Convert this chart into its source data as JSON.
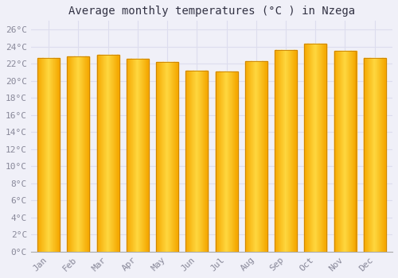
{
  "title": "Average monthly temperatures (°C ) in Nzega",
  "months": [
    "Jan",
    "Feb",
    "Mar",
    "Apr",
    "May",
    "Jun",
    "Jul",
    "Aug",
    "Sep",
    "Oct",
    "Nov",
    "Dec"
  ],
  "values": [
    22.7,
    22.8,
    23.0,
    22.6,
    22.2,
    21.2,
    21.1,
    22.3,
    23.6,
    24.3,
    23.5,
    22.7
  ],
  "bar_color_left": "#F5A800",
  "bar_color_center": "#FFD840",
  "bar_color_right": "#F5A800",
  "bar_edge_color": "#C88000",
  "background_color": "#F0F0F8",
  "plot_bg_color": "#F0F0F8",
  "grid_color": "#DDDDEE",
  "ylim": [
    0,
    27
  ],
  "yticks": [
    0,
    2,
    4,
    6,
    8,
    10,
    12,
    14,
    16,
    18,
    20,
    22,
    24,
    26
  ],
  "title_fontsize": 10,
  "tick_fontsize": 8,
  "tick_color": "#888899",
  "font_family": "monospace",
  "bar_width": 0.75
}
